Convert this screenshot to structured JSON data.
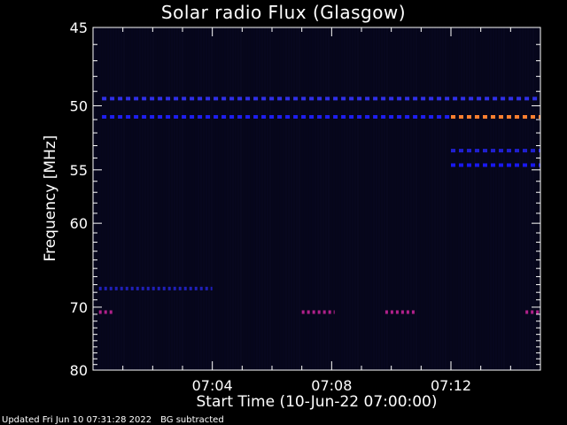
{
  "chart_data": {
    "type": "heatmap",
    "title": "Solar radio Flux (Glasgow)",
    "xlabel": "Start Time (10-Jun-22 07:00:00)",
    "ylabel": "Frequency [MHz]",
    "x_unit": "minutes after 07:00:00",
    "xlim": [
      0,
      15
    ],
    "ylim": [
      80,
      45
    ],
    "y_scale": "reciprocal",
    "x_ticks": [
      {
        "value": 4,
        "label": "07:04"
      },
      {
        "value": 8,
        "label": "07:08"
      },
      {
        "value": 12,
        "label": "07:12"
      }
    ],
    "y_ticks": [
      {
        "value": 45,
        "label": "45"
      },
      {
        "value": 50,
        "label": "50"
      },
      {
        "value": 55,
        "label": "55"
      },
      {
        "value": 60,
        "label": "60"
      },
      {
        "value": 70,
        "label": "70"
      },
      {
        "value": 80,
        "label": "80"
      }
    ],
    "bands": [
      {
        "freq": 49.5,
        "x_start": 0.3,
        "x_end": 15,
        "color": "#3030e8"
      },
      {
        "freq": 50.8,
        "x_start": 0.3,
        "x_end": 12,
        "color": "#1e1ef0"
      },
      {
        "freq": 50.8,
        "x_start": 12,
        "x_end": 15,
        "color": "#ff8030"
      },
      {
        "freq": 53.4,
        "x_start": 12,
        "x_end": 15,
        "color": "#2020d0"
      },
      {
        "freq": 54.6,
        "x_start": 12,
        "x_end": 15,
        "color": "#1818f0"
      },
      {
        "freq": 67.5,
        "x_start": 0.2,
        "x_end": 4.0,
        "color": "#2020b8"
      },
      {
        "freq": 70.7,
        "x_start": 0.2,
        "x_end": 0.7,
        "color": "#b0208a"
      },
      {
        "freq": 70.7,
        "x_start": 7.0,
        "x_end": 8.1,
        "color": "#b0208a"
      },
      {
        "freq": 70.7,
        "x_start": 9.8,
        "x_end": 10.8,
        "color": "#b0208a"
      },
      {
        "freq": 70.7,
        "x_start": 14.5,
        "x_end": 15,
        "color": "#b0208a"
      }
    ],
    "background_color": "#06061a"
  },
  "footer": {
    "updated": "Updated Fri Jun 10 07:31:28 2022",
    "note": "BG subtracted"
  }
}
